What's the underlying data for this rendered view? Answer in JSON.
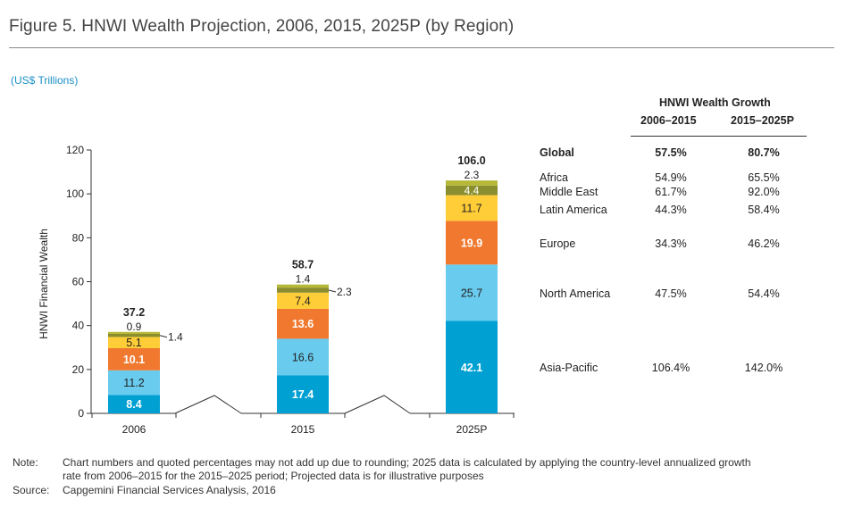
{
  "figure": {
    "title": "Figure 5. HNWI Wealth Projection, 2006, 2015, 2025P (by Region)",
    "units": "(US$ Trillions)"
  },
  "chart_data": {
    "type": "bar",
    "stacked": true,
    "title": "HNWI Wealth Projection, 2006, 2015, 2025P (by Region)",
    "ylabel": "HNWI Financial Wealth",
    "xlabel": "",
    "ylim": [
      0,
      120
    ],
    "yticks": [
      0,
      20,
      40,
      60,
      80,
      100,
      120
    ],
    "categories": [
      "2006",
      "2015",
      "2025P"
    ],
    "totals": [
      "37.2",
      "58.7",
      "106.0"
    ],
    "series": [
      {
        "name": "Asia-Pacific",
        "color": "#00a0d2",
        "values": [
          8.4,
          17.4,
          42.1
        ],
        "labels": [
          "8.4",
          "17.4",
          "42.1"
        ]
      },
      {
        "name": "North America",
        "color": "#69cbee",
        "values": [
          11.2,
          16.6,
          25.7
        ],
        "labels": [
          "11.2",
          "16.6",
          "25.7"
        ]
      },
      {
        "name": "Europe",
        "color": "#f0792f",
        "values": [
          10.1,
          13.6,
          19.9
        ],
        "labels": [
          "10.1",
          "13.6",
          "19.9"
        ]
      },
      {
        "name": "Latin America",
        "color": "#ffcd37",
        "values": [
          5.1,
          7.4,
          11.7
        ],
        "labels": [
          "5.1",
          "7.4",
          "11.7"
        ]
      },
      {
        "name": "Middle East",
        "color": "#8a8e2e",
        "values": [
          1.4,
          2.3,
          4.4
        ],
        "labels": [
          "1.4",
          "2.3",
          "4.4"
        ]
      },
      {
        "name": "Africa",
        "color": "#b6b838",
        "values": [
          0.9,
          1.4,
          2.3
        ],
        "labels": [
          "0.9",
          "1.4",
          "2.3"
        ]
      }
    ]
  },
  "growth_table": {
    "title": "HNWI Wealth Growth",
    "col1": "2006–2015",
    "col2": "2015–2025P",
    "rows": [
      {
        "region": "Global",
        "g1": "57.5%",
        "g2": "80.7%"
      },
      {
        "region": "Africa",
        "g1": "54.9%",
        "g2": "65.5%"
      },
      {
        "region": "Middle East",
        "g1": "61.7%",
        "g2": "92.0%"
      },
      {
        "region": "Latin America",
        "g1": "44.3%",
        "g2": "58.4%"
      },
      {
        "region": "Europe",
        "g1": "34.3%",
        "g2": "46.2%"
      },
      {
        "region": "North America",
        "g1": "47.5%",
        "g2": "54.4%"
      },
      {
        "region": "Asia-Pacific",
        "g1": "106.4%",
        "g2": "142.0%"
      }
    ]
  },
  "footer": {
    "note_label": "Note:",
    "note_line1": "Chart numbers and quoted percentages may not add up due to rounding; 2025 data is calculated by applying the country-level annualized growth",
    "note_line2": "rate from 2006–2015 for the 2015–2025 period; Projected data is for illustrative purposes",
    "source_label": "Source:",
    "source_text": "Capgemini Financial Services Analysis, 2016"
  }
}
